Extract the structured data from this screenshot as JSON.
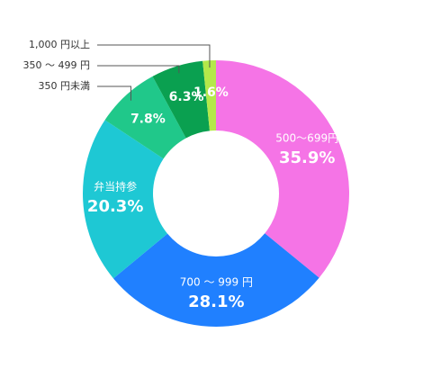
{
  "chart_data": {
    "type": "donut",
    "categories": [
      "500～699円",
      "700 ～ 999 円",
      "弁当持参",
      "350 円未満",
      "350 ～ 499 円",
      "1,000 円以上"
    ],
    "values": [
      35.9,
      28.1,
      20.3,
      7.8,
      6.3,
      1.6
    ],
    "value_labels": [
      "35.9%",
      "28.1%",
      "20.3%",
      "7.8%",
      "6.3%",
      "1.6%"
    ],
    "colors": [
      "#f574e6",
      "#2080ff",
      "#1ec8d4",
      "#20c88a",
      "#0aa050",
      "#b4e84a"
    ]
  }
}
